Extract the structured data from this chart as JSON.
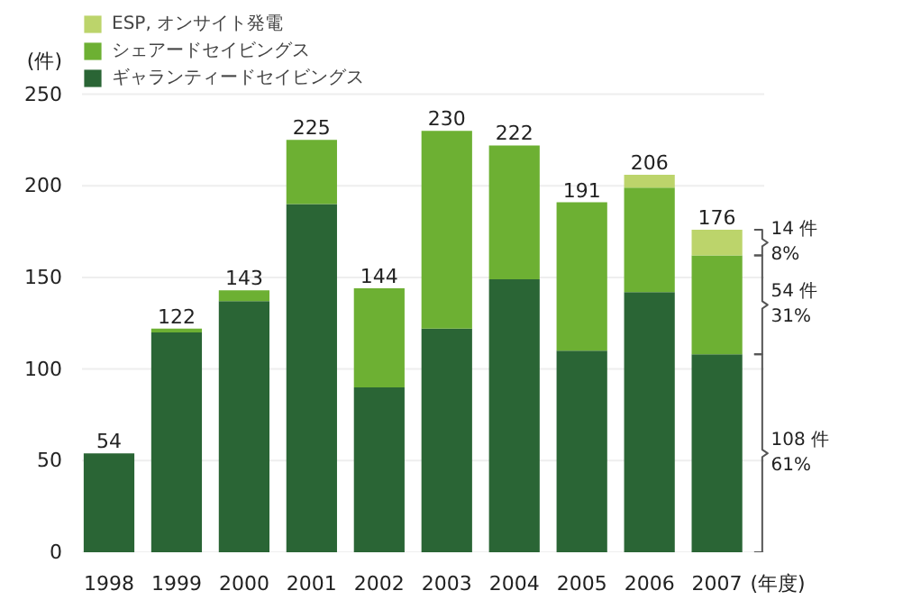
{
  "chart_data": {
    "type": "bar",
    "stacked": true,
    "ylabel": "(件)",
    "xlabel": "(年度)",
    "categories": [
      "1998",
      "1999",
      "2000",
      "2001",
      "2002",
      "2003",
      "2004",
      "2005",
      "2006",
      "2007"
    ],
    "series": [
      {
        "name": "ギャランティードセイビングス",
        "color": "#2a6535",
        "values": [
          54,
          120,
          137,
          190,
          90,
          122,
          149,
          110,
          142,
          108
        ]
      },
      {
        "name": "シェアードセイビングス",
        "color": "#6db033",
        "values": [
          0,
          2,
          6,
          35,
          54,
          108,
          73,
          81,
          57,
          54
        ]
      },
      {
        "name": "ESP, オンサイト発電",
        "color": "#bcd46b",
        "values": [
          0,
          0,
          0,
          0,
          0,
          0,
          0,
          0,
          7,
          14
        ]
      }
    ],
    "totals": [
      "54",
      "122",
      "143",
      "225",
      "144",
      "230",
      "222",
      "191",
      "206",
      "176"
    ],
    "ylim": [
      0,
      250
    ],
    "yticks": [
      0,
      50,
      100,
      150,
      200,
      250
    ],
    "grid": "y",
    "legend": "top left",
    "annotations": [
      "108 件\n61%",
      "54 件\n31%",
      "14 件\n8%"
    ]
  }
}
